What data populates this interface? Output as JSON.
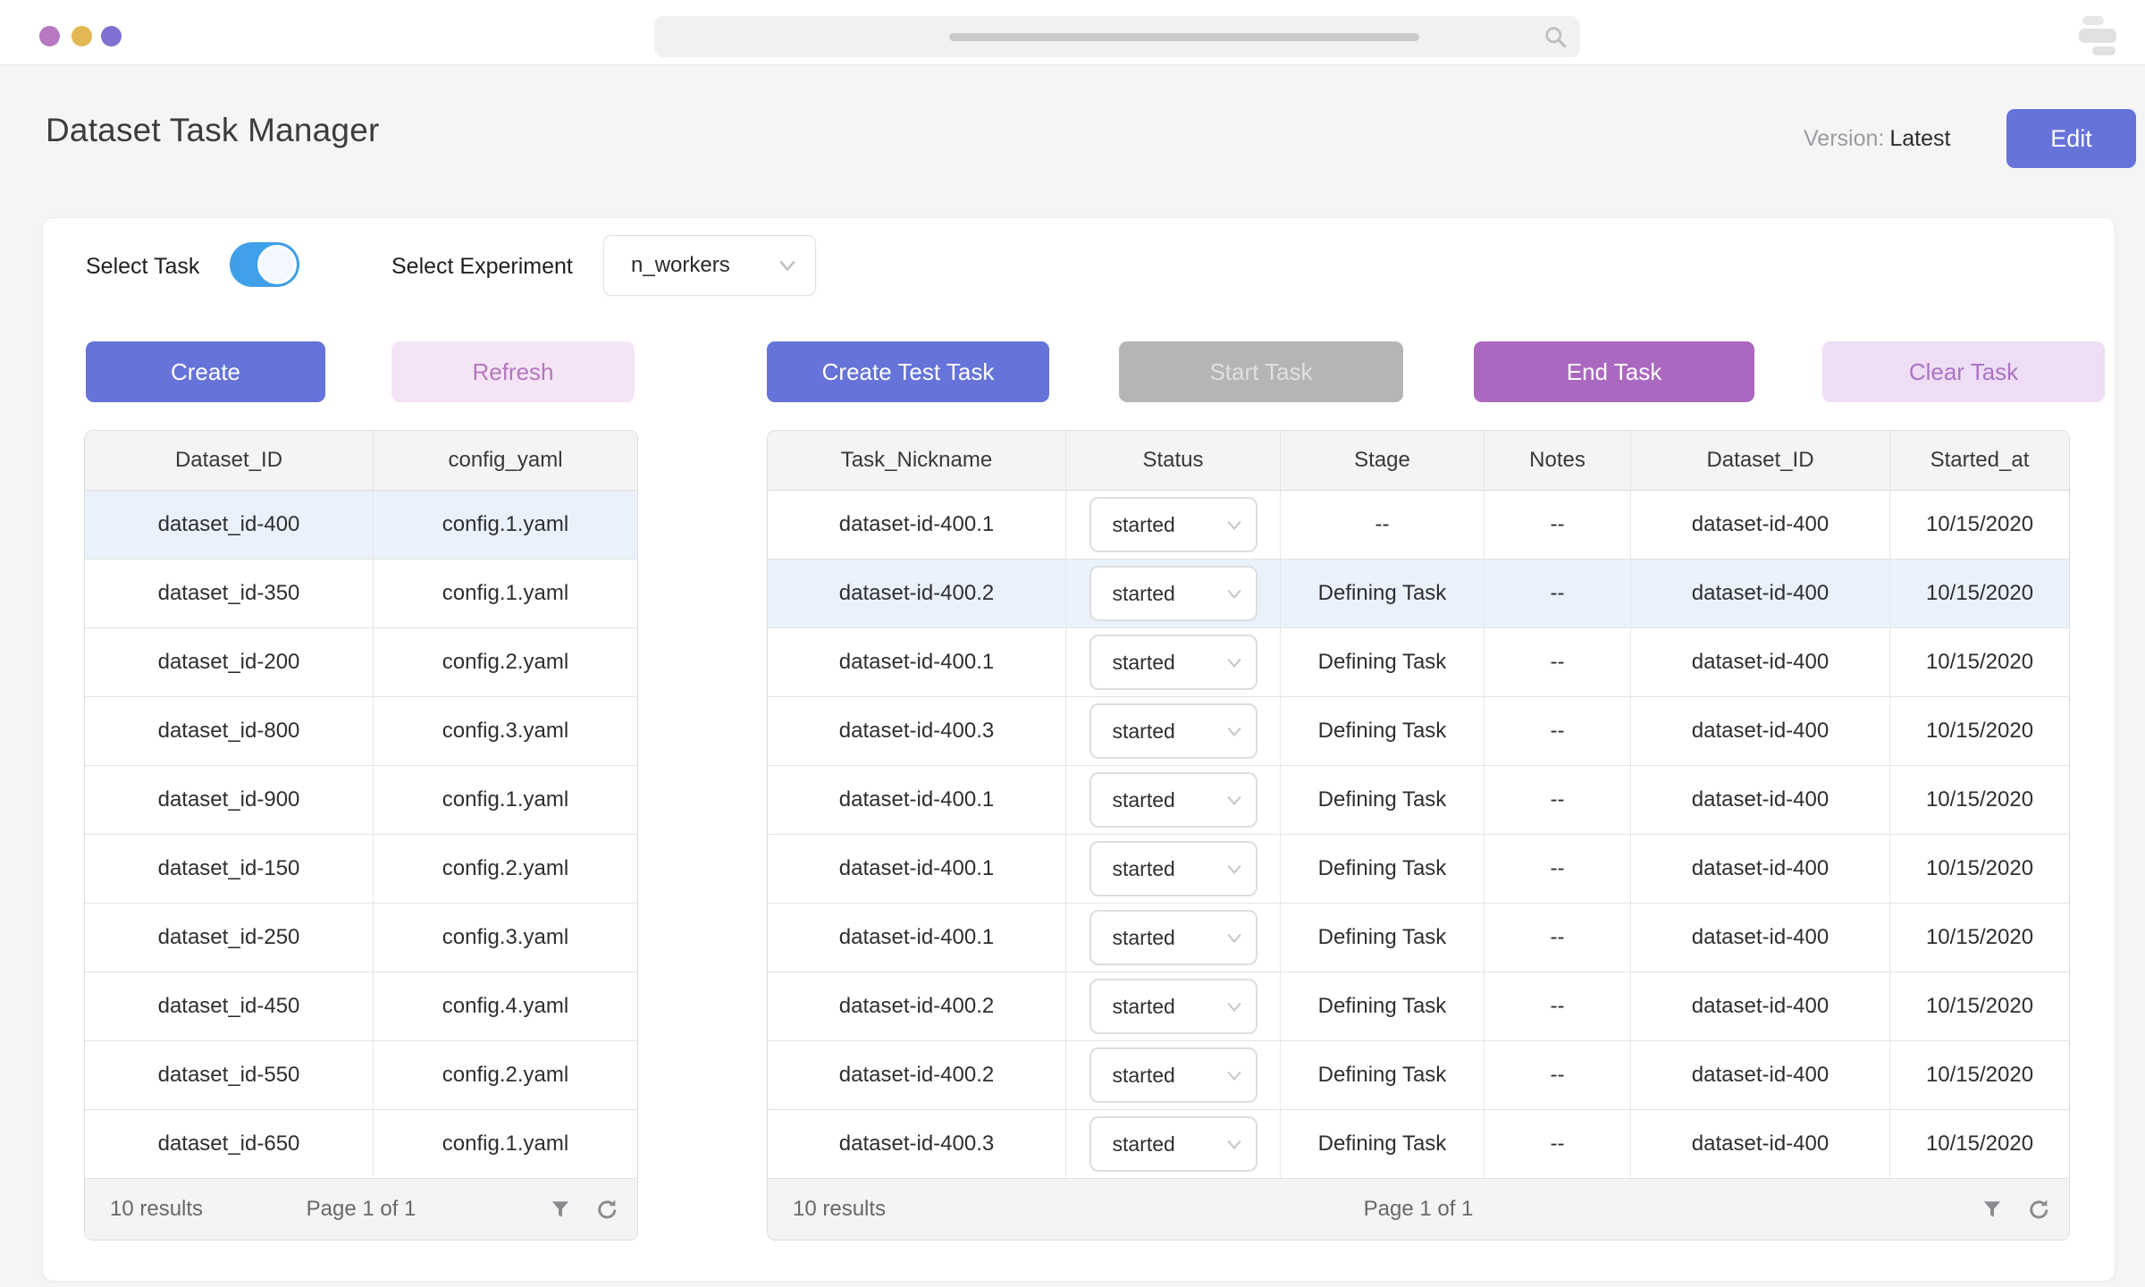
{
  "browser": {
    "search_value": "",
    "window_dots": [
      "purple",
      "yellow",
      "indigo"
    ]
  },
  "header": {
    "title": "Dataset Task Manager",
    "version_label": "Version:",
    "version_value": "Latest",
    "edit_button": "Edit"
  },
  "controls": {
    "select_task_label": "Select Task",
    "select_task_on": true,
    "select_experiment_label": "Select Experiment",
    "experiment_value": "n_workers"
  },
  "actions": {
    "create": "Create",
    "refresh": "Refresh",
    "create_test_task": "Create Test Task",
    "start_task": "Start Task",
    "end_task": "End Task",
    "clear_task": "Clear Task"
  },
  "left_table": {
    "columns": [
      "Dataset_ID",
      "config_yaml"
    ],
    "selected_row_index": 0,
    "rows": [
      {
        "dataset_id": "dataset_id-400",
        "config_yaml": "config.1.yaml"
      },
      {
        "dataset_id": "dataset_id-350",
        "config_yaml": "config.1.yaml"
      },
      {
        "dataset_id": "dataset_id-200",
        "config_yaml": "config.2.yaml"
      },
      {
        "dataset_id": "dataset_id-800",
        "config_yaml": "config.3.yaml"
      },
      {
        "dataset_id": "dataset_id-900",
        "config_yaml": "config.1.yaml"
      },
      {
        "dataset_id": "dataset_id-150",
        "config_yaml": "config.2.yaml"
      },
      {
        "dataset_id": "dataset_id-250",
        "config_yaml": "config.3.yaml"
      },
      {
        "dataset_id": "dataset_id-450",
        "config_yaml": "config.4.yaml"
      },
      {
        "dataset_id": "dataset_id-550",
        "config_yaml": "config.2.yaml"
      },
      {
        "dataset_id": "dataset_id-650",
        "config_yaml": "config.1.yaml"
      }
    ],
    "footer": {
      "results": "10 results",
      "page": "Page 1 of 1"
    }
  },
  "right_table": {
    "columns": [
      "Task_Nickname",
      "Status",
      "Stage",
      "Notes",
      "Dataset_ID",
      "Started_at"
    ],
    "selected_row_index": 1,
    "rows": [
      {
        "task_nickname": "dataset-id-400.1",
        "status": "started",
        "stage": "--",
        "notes": "--",
        "dataset_id": "dataset-id-400",
        "started_at": "10/15/2020"
      },
      {
        "task_nickname": "dataset-id-400.2",
        "status": "started",
        "stage": "Defining Task",
        "notes": "--",
        "dataset_id": "dataset-id-400",
        "started_at": "10/15/2020"
      },
      {
        "task_nickname": "dataset-id-400.1",
        "status": "started",
        "stage": "Defining Task",
        "notes": "--",
        "dataset_id": "dataset-id-400",
        "started_at": "10/15/2020"
      },
      {
        "task_nickname": "dataset-id-400.3",
        "status": "started",
        "stage": "Defining Task",
        "notes": "--",
        "dataset_id": "dataset-id-400",
        "started_at": "10/15/2020"
      },
      {
        "task_nickname": "dataset-id-400.1",
        "status": "started",
        "stage": "Defining Task",
        "notes": "--",
        "dataset_id": "dataset-id-400",
        "started_at": "10/15/2020"
      },
      {
        "task_nickname": "dataset-id-400.1",
        "status": "started",
        "stage": "Defining Task",
        "notes": "--",
        "dataset_id": "dataset-id-400",
        "started_at": "10/15/2020"
      },
      {
        "task_nickname": "dataset-id-400.1",
        "status": "started",
        "stage": "Defining Task",
        "notes": "--",
        "dataset_id": "dataset-id-400",
        "started_at": "10/15/2020"
      },
      {
        "task_nickname": "dataset-id-400.2",
        "status": "started",
        "stage": "Defining Task",
        "notes": "--",
        "dataset_id": "dataset-id-400",
        "started_at": "10/15/2020"
      },
      {
        "task_nickname": "dataset-id-400.2",
        "status": "started",
        "stage": "Defining Task",
        "notes": "--",
        "dataset_id": "dataset-id-400",
        "started_at": "10/15/2020"
      },
      {
        "task_nickname": "dataset-id-400.3",
        "status": "started",
        "stage": "Defining Task",
        "notes": "--",
        "dataset_id": "dataset-id-400",
        "started_at": "10/15/2020"
      }
    ],
    "footer": {
      "results": "10 results",
      "page": "Page 1 of 1"
    }
  },
  "icons": {
    "search": "magnifier",
    "filter": "funnel",
    "refresh": "circular-arrow",
    "dropdown_chevron": "chevron-down",
    "window_menu": "stacked-bars"
  },
  "colors": {
    "accent_indigo": "#6673d9",
    "accent_purple": "#ab68c0",
    "purple_light_bg": "#f5e4f5",
    "purple_light_text": "#b476bd",
    "lavender_bg": "#eeddf4",
    "lavender_text": "#aa74c6",
    "disabled_gray_bg": "#b5b5b6",
    "disabled_gray_text": "#e0e0e2",
    "toggle_blue": "#3f9fe9",
    "row_highlight": "#eaf1fb",
    "page_bg": "#f5f5f6",
    "dot_purple": "#b679c2",
    "dot_yellow": "#e2b852",
    "dot_indigo": "#7e71d1"
  }
}
